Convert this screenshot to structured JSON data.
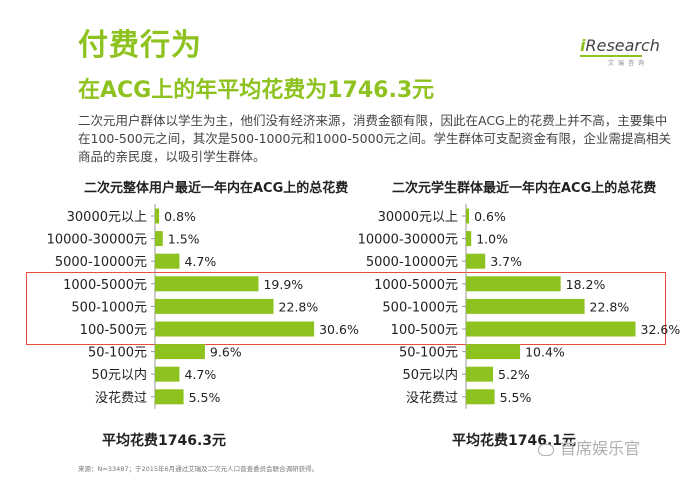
{
  "header": {
    "title": "付费行为",
    "subtitle": "在ACG上的年平均花费为1746.3元",
    "logo_text": "Research",
    "logo_sub": "艾瑞咨询",
    "description": "二次元用户群体以学生为主，他们没有经济来源，消费金额有限，因此在ACG上的花费上并不高，主要集中在100-500元之间，其次是500-1000元和1000-5000元之间。学生群体可支配资金有限，企业需提高相关商品的亲民度，以吸引学生群体。"
  },
  "chart_data": [
    {
      "type": "bar",
      "orientation": "horizontal",
      "title": "二次元整体用户最近一年内在ACG上的总花费",
      "categories": [
        "30000元以上",
        "10000-30000元",
        "5000-10000元",
        "1000-5000元",
        "500-1000元",
        "100-500元",
        "50-100元",
        "50元以内",
        "没花费过"
      ],
      "values": [
        0.8,
        1.5,
        4.7,
        19.9,
        22.8,
        30.6,
        9.6,
        4.7,
        5.5
      ],
      "labels": [
        "0.8%",
        "1.5%",
        "4.7%",
        "19.9%",
        "22.8%",
        "30.6%",
        "9.6%",
        "4.7%",
        "5.5%"
      ],
      "unit": "%",
      "bar_color": "#8dc21f",
      "average_label": "平均花费1746.3元"
    },
    {
      "type": "bar",
      "orientation": "horizontal",
      "title": "二次元学生群体最近一年内在ACG上的总花费",
      "categories": [
        "30000元以上",
        "10000-30000元",
        "5000-10000元",
        "1000-5000元",
        "500-1000元",
        "100-500元",
        "50-100元",
        "50元以内",
        "没花费过"
      ],
      "values": [
        0.6,
        1.0,
        3.7,
        18.2,
        22.8,
        32.6,
        10.4,
        5.2,
        5.5
      ],
      "labels": [
        "0.6%",
        "1.0%",
        "3.7%",
        "18.2%",
        "22.8%",
        "32.6%",
        "10.4%",
        "5.2%",
        "5.5%"
      ],
      "unit": "%",
      "bar_color": "#8dc21f",
      "average_label": "平均花费1746.1元"
    }
  ],
  "footer": {
    "source": "来源：N=33487；于2015年6月通过艾瑞及二次元人口普查委员会联合调研获得。",
    "watermark": "首席娱乐官"
  }
}
